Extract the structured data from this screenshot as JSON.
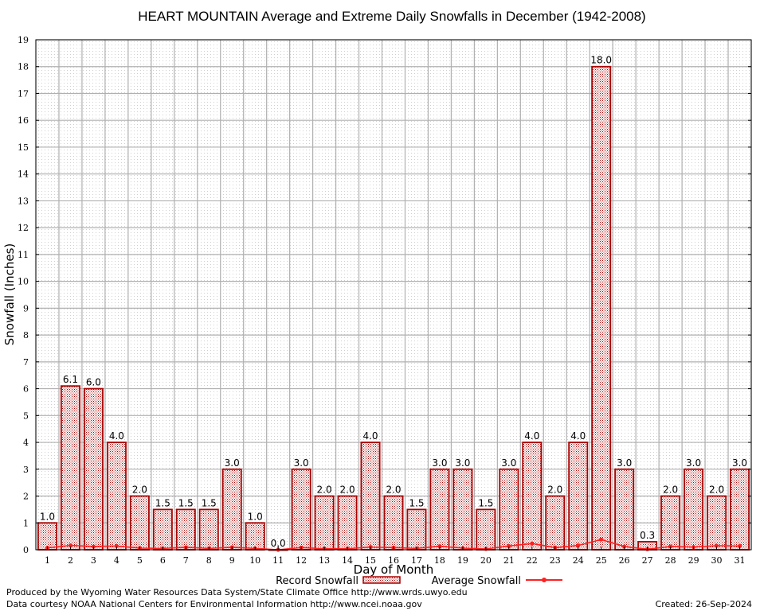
{
  "chart_data": {
    "type": "bar",
    "title": "HEART MOUNTAIN Average and Extreme Daily Snowfalls in December (1942-2008)",
    "xlabel": "Day of Month",
    "ylabel": "Snowfall (Inches)",
    "ylim": [
      0,
      19
    ],
    "yticks": [
      0,
      1,
      2,
      3,
      4,
      5,
      6,
      7,
      8,
      9,
      10,
      11,
      12,
      13,
      14,
      15,
      16,
      17,
      18,
      19
    ],
    "categories": [
      1,
      2,
      3,
      4,
      5,
      6,
      7,
      8,
      9,
      10,
      11,
      12,
      13,
      14,
      15,
      16,
      17,
      18,
      19,
      20,
      21,
      22,
      23,
      24,
      25,
      26,
      27,
      28,
      29,
      30,
      31
    ],
    "grid": true,
    "legend_position": "bottom-center",
    "series": [
      {
        "name": "Record Snowfall",
        "kind": "bar",
        "color": "#aa0000",
        "values": [
          1.0,
          6.1,
          6.0,
          4.0,
          2.0,
          1.5,
          1.5,
          1.5,
          3.0,
          1.0,
          0.0,
          3.0,
          2.0,
          2.0,
          4.0,
          2.0,
          1.5,
          3.0,
          3.0,
          1.5,
          3.0,
          4.0,
          2.0,
          4.0,
          18.0,
          3.0,
          0.3,
          2.0,
          3.0,
          2.0,
          3.0
        ],
        "labels": [
          "1.0",
          "6.1",
          "6.0",
          "4.0",
          "2.0",
          "1.5",
          "1.5",
          "1.5",
          "3.0",
          "1.0",
          "0.0",
          "3.0",
          "2.0",
          "2.0",
          "4.0",
          "2.0",
          "1.5",
          "3.0",
          "3.0",
          "1.5",
          "3.0",
          "4.0",
          "2.0",
          "4.0",
          "18.0",
          "3.0",
          "0.3",
          "2.0",
          "3.0",
          "2.0",
          "3.0"
        ]
      },
      {
        "name": "Average Snowfall",
        "kind": "line",
        "color": "#ff2020",
        "values": [
          0.07,
          0.16,
          0.12,
          0.14,
          0.06,
          0.05,
          0.09,
          0.05,
          0.09,
          0.05,
          0.0,
          0.08,
          0.04,
          0.04,
          0.1,
          0.08,
          0.05,
          0.13,
          0.06,
          0.03,
          0.14,
          0.23,
          0.08,
          0.16,
          0.38,
          0.12,
          0.02,
          0.12,
          0.1,
          0.15,
          0.14
        ]
      }
    ]
  },
  "footer": {
    "produced_by": "Produced by the Wyoming Water Resources Data System/State Climate Office http://www.wrds.uwyo.edu",
    "data_courtesy": "Data courtesy NOAA National Centers for Environmental Information http://www.ncei.noaa.gov",
    "created": "Created:  26-Sep-2024"
  }
}
